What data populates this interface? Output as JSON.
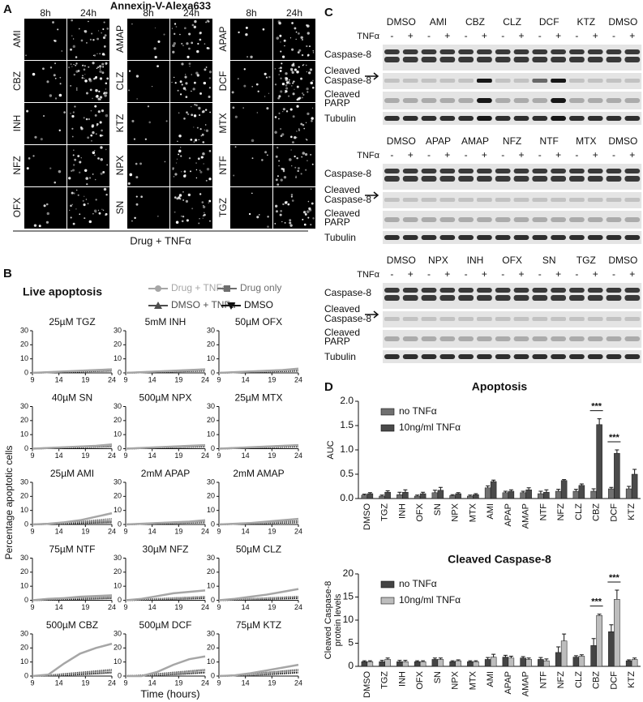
{
  "panel_labels": [
    "A",
    "B",
    "C",
    "D"
  ],
  "panel_a": {
    "title": "Annexin-V-Alexa633",
    "time_labels": [
      "8h",
      "24h"
    ],
    "groups": [
      [
        "AMI",
        "CBZ",
        "INH",
        "NFZ",
        "OFX"
      ],
      [
        "AMAP",
        "CLZ",
        "KTZ",
        "NPX",
        "SN"
      ],
      [
        "APAP",
        "DCF",
        "MTX",
        "NTF",
        "TGZ"
      ]
    ],
    "caption": "Drug + TNFα"
  },
  "panel_b": {
    "title": "Live apoptosis",
    "legend": [
      {
        "name": "Drug + TNFα",
        "color": "#a6a6a6"
      },
      {
        "name": "Drug only",
        "color": "#6e6e6e"
      },
      {
        "name": "DMSO + TNFα",
        "color": "#4d4d4d"
      },
      {
        "name": "DMSO",
        "color": "#111111"
      }
    ],
    "y_label": "Percentage apoptotic cells",
    "x_label": "Time (hours)",
    "x": [
      9,
      12,
      15,
      18,
      21,
      24
    ],
    "xlim": [
      9,
      24
    ],
    "xticks": [
      9,
      14,
      19,
      24
    ],
    "ylim": [
      0,
      30
    ],
    "yticks": [
      0,
      10,
      20,
      30
    ],
    "plots": [
      {
        "title": "25µM TGZ",
        "values": [
          [
            0,
            0.5,
            1,
            1.5,
            2,
            2.5
          ],
          [
            0,
            0.4,
            0.8,
            1.2,
            1.6,
            2
          ],
          [
            0,
            0.5,
            1,
            1.5,
            2,
            2.5
          ],
          [
            0,
            0.3,
            0.6,
            0.9,
            1.2,
            1.5
          ]
        ]
      },
      {
        "title": "5mM INH",
        "values": [
          [
            0,
            0.5,
            1,
            1.5,
            2,
            2.5
          ],
          [
            0,
            0.4,
            0.8,
            1.2,
            1.6,
            2
          ],
          [
            0,
            0.5,
            1,
            1.5,
            2,
            2.5
          ],
          [
            0,
            0.3,
            0.6,
            0.9,
            1.2,
            1.5
          ]
        ]
      },
      {
        "title": "50µM OFX",
        "values": [
          [
            0,
            0.5,
            1,
            1.5,
            2,
            3
          ],
          [
            0,
            0.4,
            0.8,
            1.2,
            1.6,
            2
          ],
          [
            0,
            0.5,
            1,
            1.5,
            2,
            2.5
          ],
          [
            0,
            0.3,
            0.6,
            0.9,
            1.2,
            1.5
          ]
        ]
      },
      {
        "title": "40µM SN",
        "values": [
          [
            0,
            0.5,
            1,
            1.5,
            2,
            3
          ],
          [
            0,
            0.4,
            0.8,
            1.2,
            1.6,
            2
          ],
          [
            0,
            0.5,
            1,
            1.5,
            2,
            2.5
          ],
          [
            0,
            0.3,
            0.6,
            0.9,
            1.2,
            1.5
          ]
        ]
      },
      {
        "title": "500µM NPX",
        "values": [
          [
            0,
            0.5,
            1,
            1.5,
            2,
            2.5
          ],
          [
            0,
            0.4,
            0.8,
            1.2,
            1.6,
            2
          ],
          [
            0,
            0.5,
            1,
            1.5,
            2,
            2.5
          ],
          [
            0,
            0.3,
            0.6,
            0.9,
            1.2,
            1.5
          ]
        ]
      },
      {
        "title": "25µM MTX",
        "values": [
          [
            0,
            0.5,
            1,
            1.5,
            2,
            2.5
          ],
          [
            0,
            0.4,
            0.8,
            1.2,
            1.6,
            2
          ],
          [
            0,
            0.5,
            1,
            1.5,
            2,
            2.5
          ],
          [
            0,
            0.3,
            0.6,
            0.9,
            1.2,
            1.5
          ]
        ]
      },
      {
        "title": "25µM AMI",
        "values": [
          [
            0,
            0.5,
            1.5,
            3,
            5.5,
            8
          ],
          [
            0,
            0.5,
            1,
            2,
            3,
            4
          ],
          [
            0,
            0.5,
            1,
            1.5,
            2,
            2.5
          ],
          [
            0,
            0.3,
            0.6,
            0.9,
            1.2,
            1.5
          ]
        ]
      },
      {
        "title": "2mM APAP",
        "values": [
          [
            0,
            0.5,
            1,
            1.5,
            2,
            3
          ],
          [
            0,
            0.4,
            0.8,
            1.2,
            1.6,
            2
          ],
          [
            0,
            0.5,
            1,
            1.5,
            2,
            2.5
          ],
          [
            0,
            0.3,
            0.6,
            0.9,
            1.2,
            1.5
          ]
        ]
      },
      {
        "title": "2mM AMAP",
        "values": [
          [
            0,
            0.5,
            1,
            2,
            3,
            4
          ],
          [
            0,
            0.4,
            0.8,
            1.2,
            1.6,
            2
          ],
          [
            0,
            0.5,
            1,
            1.5,
            2,
            2.5
          ],
          [
            0,
            0.3,
            0.6,
            0.9,
            1.2,
            1.5
          ]
        ]
      },
      {
        "title": "75µM NTF",
        "values": [
          [
            0,
            1,
            1.5,
            2.5,
            3,
            3.5
          ],
          [
            0,
            0.5,
            1,
            1.5,
            2,
            2.5
          ],
          [
            0,
            1,
            1.5,
            2,
            2.5,
            3
          ],
          [
            0,
            0.3,
            0.6,
            0.9,
            1.2,
            1.5
          ]
        ]
      },
      {
        "title": "30µM NFZ",
        "values": [
          [
            0,
            1,
            3,
            5,
            6,
            7
          ],
          [
            0,
            0.5,
            1,
            1.5,
            2,
            2.5
          ],
          [
            0,
            0.5,
            1,
            1.5,
            2,
            2.5
          ],
          [
            0,
            0.3,
            0.6,
            0.9,
            1.2,
            1.5
          ]
        ]
      },
      {
        "title": "50µM CLZ",
        "values": [
          [
            0,
            1,
            2.5,
            4,
            6,
            8
          ],
          [
            0,
            0.5,
            1,
            1.5,
            2,
            2.5
          ],
          [
            0,
            0.5,
            1,
            1.5,
            2,
            2.5
          ],
          [
            0,
            0.3,
            0.6,
            0.9,
            1.2,
            1.5
          ]
        ]
      },
      {
        "title": "500µM CBZ",
        "values": [
          [
            0,
            1,
            9,
            16,
            20,
            23
          ],
          [
            0,
            0.5,
            1,
            2,
            3,
            4
          ],
          [
            0,
            0.5,
            1.5,
            2.5,
            3.5,
            4.5
          ],
          [
            0,
            0.3,
            0.8,
            1.2,
            1.8,
            2.5
          ]
        ]
      },
      {
        "title": "500µM DCF",
        "values": [
          [
            0,
            0,
            3,
            8,
            12,
            14
          ],
          [
            0,
            0.5,
            1,
            2,
            3,
            4
          ],
          [
            0,
            0.5,
            1.5,
            2.5,
            3.5,
            4.5
          ],
          [
            0,
            0.3,
            0.8,
            1.2,
            1.8,
            2.5
          ]
        ]
      },
      {
        "title": "75µM KTZ",
        "values": [
          [
            0,
            0.5,
            2,
            4,
            6,
            8
          ],
          [
            0,
            0.5,
            1,
            2,
            3,
            4
          ],
          [
            0,
            0.5,
            1.5,
            2.5,
            3.5,
            4.5
          ],
          [
            0,
            0.3,
            0.8,
            1.2,
            1.8,
            2.5
          ]
        ]
      }
    ]
  },
  "panel_c": {
    "treatment_label": "TNFα",
    "treatment_signs": [
      "-",
      "+"
    ],
    "row_labels": [
      [
        "Caspase-8"
      ],
      [
        "Cleaved",
        "Caspase-8"
      ],
      [
        "Cleaved",
        "PARP"
      ],
      [
        "Tubulin"
      ]
    ],
    "blocks": [
      {
        "lanes": [
          "DMSO",
          "AMI",
          "CBZ",
          "CLZ",
          "DCF",
          "KTZ",
          "DMSO"
        ]
      },
      {
        "lanes": [
          "DMSO",
          "APAP",
          "AMAP",
          "NFZ",
          "NTF",
          "MTX",
          "DMSO"
        ]
      },
      {
        "lanes": [
          "DMSO",
          "NPX",
          "INH",
          "OFX",
          "SN",
          "TGZ",
          "DMSO"
        ]
      }
    ]
  },
  "panel_d": {
    "charts": [
      {
        "type": "bar",
        "title": "Apoptosis",
        "y_label": [
          "AUC"
        ],
        "categories": [
          "DMSO",
          "TGZ",
          "INH",
          "OFX",
          "SN",
          "NPX",
          "MTX",
          "AMI",
          "APAP",
          "AMAP",
          "NTF",
          "NFZ",
          "CLZ",
          "CBZ",
          "DCF",
          "KTZ"
        ],
        "series": [
          {
            "name": "no TNFα",
            "color": "#707070",
            "values": [
              0.07,
              0.05,
              0.08,
              0.05,
              0.12,
              0.06,
              0.05,
              0.22,
              0.12,
              0.12,
              0.1,
              0.15,
              0.15,
              0.15,
              0.2,
              0.2
            ],
            "errors": [
              0.02,
              0.02,
              0.05,
              0.02,
              0.05,
              0.02,
              0.02,
              0.04,
              0.03,
              0.03,
              0.05,
              0.04,
              0.04,
              0.05,
              0.03,
              0.05
            ]
          },
          {
            "name": "10ng/ml TNFα",
            "color": "#4a4a4a",
            "values": [
              0.1,
              0.13,
              0.13,
              0.1,
              0.17,
              0.1,
              0.08,
              0.35,
              0.15,
              0.18,
              0.13,
              0.37,
              0.27,
              1.52,
              0.93,
              0.5
            ],
            "errors": [
              0.02,
              0.03,
              0.05,
              0.03,
              0.06,
              0.02,
              0.02,
              0.03,
              0.03,
              0.04,
              0.05,
              0.02,
              0.03,
              0.12,
              0.07,
              0.1
            ]
          }
        ],
        "ylim": [
          0,
          2
        ],
        "yticks": [
          {
            "value": 0,
            "label": "0.0"
          },
          {
            "value": 0.5,
            "label": "0.5"
          },
          {
            "value": 1,
            "label": "1.0"
          },
          {
            "value": 1.5,
            "label": "1.5"
          },
          {
            "value": 2,
            "label": "2.0"
          }
        ],
        "annotations": [
          {
            "text": "***",
            "category": "CBZ"
          },
          {
            "text": "***",
            "category": "DCF"
          }
        ]
      },
      {
        "type": "bar",
        "title": "Cleaved Caspase-8",
        "y_label": [
          "Cleaved Caspase-8",
          "protein levels"
        ],
        "categories": [
          "DMSO",
          "TGZ",
          "INH",
          "OFX",
          "SN",
          "NPX",
          "MTX",
          "AMI",
          "APAP",
          "AMAP",
          "NTF",
          "NFZ",
          "CLZ",
          "CBZ",
          "DCF",
          "KTZ"
        ],
        "series": [
          {
            "name": "no TNFα",
            "color": "#444444",
            "values": [
              1,
              1,
              1,
              1,
              1.5,
              1,
              1,
              1.5,
              2,
              1.8,
              1.5,
              3,
              2,
              4.5,
              7.5,
              1.2
            ],
            "errors": [
              0.2,
              0.3,
              0.3,
              0.2,
              0.3,
              0.2,
              0.2,
              0.4,
              0.4,
              0.3,
              0.4,
              1.2,
              0.3,
              1.5,
              1.5,
              0.2
            ]
          },
          {
            "name": "10ng/ml TNFα",
            "color": "#bdbdbd",
            "values": [
              1,
              1.5,
              1,
              1,
              1.5,
              1.2,
              1,
              2,
              1.8,
              1.5,
              1.2,
              5.5,
              2.2,
              11,
              14.5,
              1.5
            ],
            "errors": [
              0.2,
              0.3,
              0.3,
              0.2,
              0.3,
              0.2,
              0.2,
              0.6,
              0.4,
              0.3,
              0.4,
              1.5,
              0.3,
              0.3,
              2,
              0.3
            ]
          }
        ],
        "ylim": [
          0,
          20
        ],
        "yticks": [
          0,
          5,
          10,
          15,
          20
        ],
        "annotations": [
          {
            "text": "***",
            "category": "CBZ"
          },
          {
            "text": "***",
            "category": "DCF"
          }
        ]
      }
    ]
  }
}
